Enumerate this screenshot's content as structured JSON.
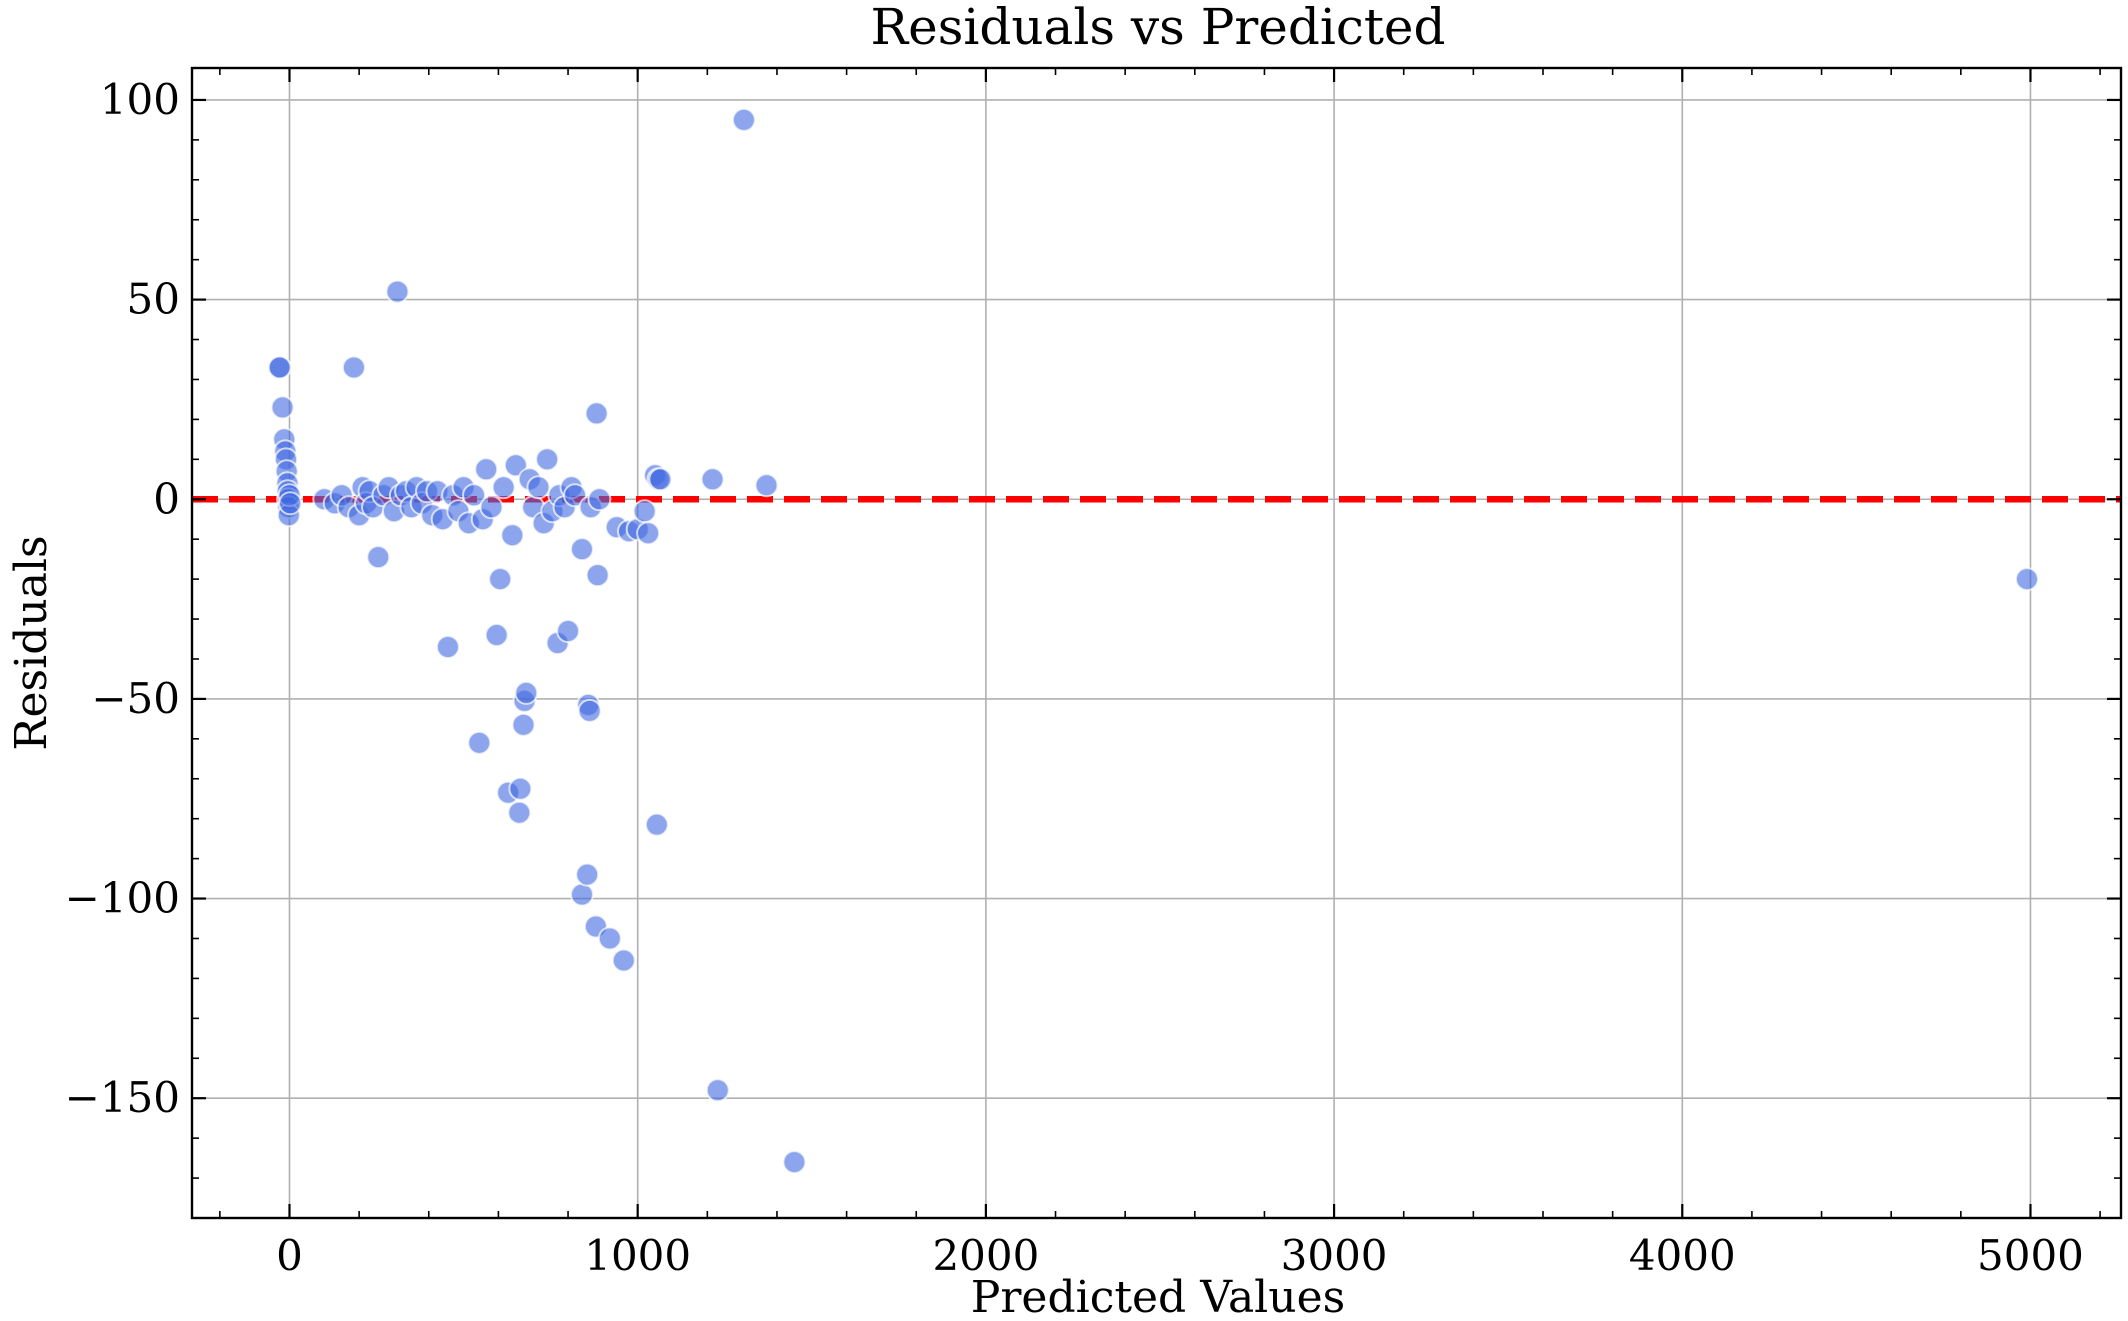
{
  "chart_data": {
    "type": "scatter",
    "title": "Residuals vs Predicted",
    "xlabel": "Predicted Values",
    "ylabel": "Residuals",
    "xlim": [
      -280,
      5260
    ],
    "ylim": [
      -180,
      108
    ],
    "xticks": [
      0,
      1000,
      2000,
      3000,
      4000,
      5000
    ],
    "yticks": [
      100,
      50,
      0,
      -50,
      -100,
      -150
    ],
    "xtick_labels": [
      "0",
      "1000",
      "2000",
      "3000",
      "4000",
      "5000"
    ],
    "ytick_labels": [
      "100",
      "50",
      "0",
      "−50",
      "−100",
      "−150"
    ],
    "x_minor_step": 200,
    "y_minor_step": 10,
    "grid": true,
    "reference_line": {
      "y": 0,
      "color": "#ff0000",
      "style": "dashed"
    },
    "point_color": "#4169e1",
    "series": [
      {
        "name": "residuals",
        "points": [
          [
            -30,
            33
          ],
          [
            -28,
            33
          ],
          [
            -20,
            23
          ],
          [
            -15,
            15
          ],
          [
            -12,
            12
          ],
          [
            -10,
            10
          ],
          [
            -8,
            7
          ],
          [
            -6,
            4
          ],
          [
            -5,
            2
          ],
          [
            -4,
            0
          ],
          [
            -3,
            -2
          ],
          [
            -2,
            -4
          ],
          [
            0,
            1
          ],
          [
            2,
            -1
          ],
          [
            100,
            0
          ],
          [
            130,
            -1
          ],
          [
            150,
            1
          ],
          [
            170,
            -2
          ],
          [
            185,
            33
          ],
          [
            200,
            -4
          ],
          [
            210,
            3
          ],
          [
            220,
            -1
          ],
          [
            230,
            2
          ],
          [
            240,
            -2
          ],
          [
            255,
            -14.5
          ],
          [
            270,
            1
          ],
          [
            285,
            3
          ],
          [
            300,
            -3
          ],
          [
            310,
            52
          ],
          [
            320,
            1
          ],
          [
            335,
            2
          ],
          [
            350,
            -2
          ],
          [
            365,
            3
          ],
          [
            380,
            -1
          ],
          [
            395,
            2
          ],
          [
            410,
            -4
          ],
          [
            425,
            2
          ],
          [
            440,
            -5
          ],
          [
            455,
            -37
          ],
          [
            470,
            1
          ],
          [
            485,
            -3
          ],
          [
            500,
            3
          ],
          [
            515,
            -6
          ],
          [
            530,
            1
          ],
          [
            545,
            -61
          ],
          [
            555,
            -5
          ],
          [
            565,
            7.5
          ],
          [
            580,
            -2
          ],
          [
            595,
            -34
          ],
          [
            605,
            -20
          ],
          [
            615,
            3
          ],
          [
            628,
            -73.5
          ],
          [
            640,
            -9
          ],
          [
            650,
            8.5
          ],
          [
            660,
            -78.5
          ],
          [
            663,
            -72.5
          ],
          [
            672,
            -56.5
          ],
          [
            675,
            -50.5
          ],
          [
            680,
            -48.5
          ],
          [
            690,
            5
          ],
          [
            700,
            -2
          ],
          [
            715,
            3
          ],
          [
            730,
            -6
          ],
          [
            740,
            10
          ],
          [
            755,
            -3
          ],
          [
            770,
            -36
          ],
          [
            775,
            1
          ],
          [
            790,
            -2
          ],
          [
            800,
            -33
          ],
          [
            810,
            3
          ],
          [
            820,
            1
          ],
          [
            840,
            -12.5
          ],
          [
            840,
            -99
          ],
          [
            855,
            -94
          ],
          [
            858,
            -51.5
          ],
          [
            862,
            -53
          ],
          [
            865,
            -2
          ],
          [
            880,
            -107
          ],
          [
            882,
            21.5
          ],
          [
            885,
            -19
          ],
          [
            890,
            0
          ],
          [
            920,
            -110
          ],
          [
            940,
            -7
          ],
          [
            960,
            -115.5
          ],
          [
            975,
            -8
          ],
          [
            1000,
            -7.5
          ],
          [
            1020,
            -3
          ],
          [
            1030,
            -8.5
          ],
          [
            1050,
            6
          ],
          [
            1055,
            -81.5
          ],
          [
            1060,
            5
          ],
          [
            1065,
            5
          ],
          [
            1215,
            5
          ],
          [
            1230,
            -148
          ],
          [
            1305,
            95
          ],
          [
            1370,
            3.5
          ],
          [
            1450,
            -166
          ],
          [
            4990,
            -20
          ]
        ]
      }
    ]
  }
}
